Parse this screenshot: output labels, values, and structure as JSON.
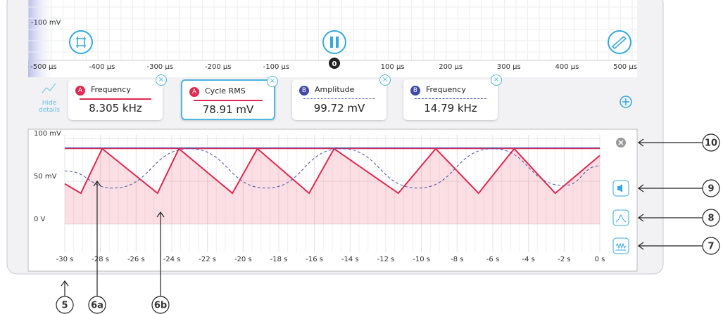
{
  "scope": {
    "y_label": "-100 mV",
    "x_ticks": [
      "-500 µs",
      "-400 µs",
      "-300 µs",
      "-200 µs",
      "-100 µs",
      "0",
      "100 µs",
      "200 µs",
      "300 µs",
      "400 µs",
      "500 µs"
    ]
  },
  "hide_details": "Hide details",
  "measurements": [
    {
      "channel": "A",
      "name": "Frequency",
      "value": "8.305 kHz"
    },
    {
      "channel": "A",
      "name": "Cycle RMS",
      "value": "78.91 mV"
    },
    {
      "channel": "B",
      "name": "Amplitude",
      "value": "99.72 mV"
    },
    {
      "channel": "B",
      "name": "Frequency",
      "value": "14.79 kHz"
    }
  ],
  "chart_data": {
    "type": "line",
    "xlim": [
      -30,
      0
    ],
    "ylim": [
      0,
      100
    ],
    "xticks": [
      {
        "value": -30,
        "label": "-30 s"
      },
      {
        "value": -28,
        "label": "-28 s"
      },
      {
        "value": -26,
        "label": "-26 s"
      },
      {
        "value": -24,
        "label": "-24 s"
      },
      {
        "value": -22,
        "label": "-22 s"
      },
      {
        "value": -20,
        "label": "-20 s"
      },
      {
        "value": -18,
        "label": "-18 s"
      },
      {
        "value": -16,
        "label": "-16 s"
      },
      {
        "value": -14,
        "label": "-14 s"
      },
      {
        "value": -12,
        "label": "-12 s"
      },
      {
        "value": -10,
        "label": "-10 s"
      },
      {
        "value": -8,
        "label": "-8 s"
      },
      {
        "value": -6,
        "label": "-6 s"
      },
      {
        "value": -4,
        "label": "-4 s"
      },
      {
        "value": -2,
        "label": "-2 s"
      },
      {
        "value": 0,
        "label": "0 s"
      }
    ],
    "yticks": [
      {
        "value": 0,
        "label": "0 V"
      },
      {
        "value": 50,
        "label": "50 mV"
      },
      {
        "value": 100,
        "label": "100 mV"
      }
    ],
    "grid": true,
    "series": [
      {
        "color": "#e3284f",
        "fill": true,
        "max": 88,
        "x": [
          -30,
          -29.1,
          -27.9,
          -24.8,
          -23.6,
          -20.6,
          -19.2,
          -16.3,
          -14.9,
          -11.3,
          -9.2,
          -6.8,
          -4.8,
          -2.5,
          0
        ],
        "values": [
          47,
          36,
          88,
          36,
          88,
          36,
          88,
          36,
          88,
          36,
          88,
          36,
          88,
          36,
          80
        ]
      },
      {
        "color": "#4b4fa8",
        "dashed": true,
        "max": 89,
        "x": [
          -30,
          -27.3,
          -23,
          -18.7,
          -14.5,
          -10.2,
          -6,
          -2,
          0
        ],
        "values": [
          62,
          42,
          88,
          42,
          88,
          42,
          88,
          45,
          68
        ]
      }
    ]
  },
  "callouts": [
    "10",
    "9",
    "8",
    "7",
    "5",
    "6a",
    "6b"
  ]
}
